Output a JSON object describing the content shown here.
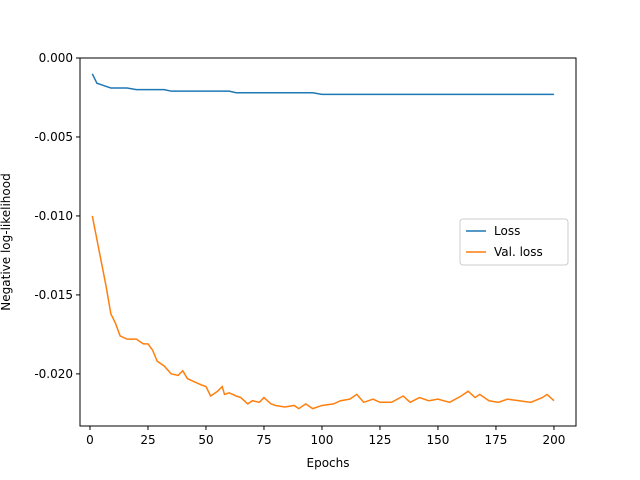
{
  "chart_data": {
    "type": "line",
    "xlabel": "Epochs",
    "ylabel": "Negative log-likelihood",
    "x": [
      1,
      3,
      5,
      7,
      9,
      11,
      13,
      16,
      20,
      23,
      25,
      27,
      29,
      32,
      35,
      38,
      40,
      42,
      45,
      48,
      50,
      52,
      55,
      57,
      58,
      60,
      63,
      65,
      68,
      70,
      73,
      75,
      78,
      80,
      84,
      88,
      90,
      93,
      96,
      100,
      105,
      108,
      112,
      115,
      118,
      122,
      125,
      130,
      135,
      138,
      142,
      146,
      150,
      155,
      160,
      163,
      166,
      168,
      172,
      176,
      180,
      185,
      190,
      195,
      197,
      200
    ],
    "series": [
      {
        "name": "Loss",
        "color": "#1f77b4",
        "values": [
          -0.001,
          -0.0016,
          -0.0017,
          -0.0018,
          -0.0019,
          -0.0019,
          -0.0019,
          -0.0019,
          -0.002,
          -0.002,
          -0.002,
          -0.002,
          -0.002,
          -0.002,
          -0.0021,
          -0.0021,
          -0.0021,
          -0.0021,
          -0.0021,
          -0.0021,
          -0.0021,
          -0.0021,
          -0.0021,
          -0.0021,
          -0.0021,
          -0.0021,
          -0.0022,
          -0.0022,
          -0.0022,
          -0.0022,
          -0.0022,
          -0.0022,
          -0.0022,
          -0.0022,
          -0.0022,
          -0.0022,
          -0.0022,
          -0.0022,
          -0.0022,
          -0.0023,
          -0.0023,
          -0.0023,
          -0.0023,
          -0.0023,
          -0.0023,
          -0.0023,
          -0.0023,
          -0.0023,
          -0.0023,
          -0.0023,
          -0.0023,
          -0.0023,
          -0.0023,
          -0.0023,
          -0.0023,
          -0.0023,
          -0.0023,
          -0.0023,
          -0.0023,
          -0.0023,
          -0.0023,
          -0.0023,
          -0.0023,
          -0.0023,
          -0.0023,
          -0.0023
        ]
      },
      {
        "name": "Val. loss",
        "color": "#ff7f0e",
        "values": [
          -0.01,
          -0.0115,
          -0.013,
          -0.0145,
          -0.0162,
          -0.0168,
          -0.0176,
          -0.0178,
          -0.0178,
          -0.0181,
          -0.0181,
          -0.0185,
          -0.0192,
          -0.0195,
          -0.02,
          -0.0201,
          -0.0198,
          -0.0203,
          -0.0205,
          -0.0207,
          -0.0208,
          -0.0214,
          -0.0211,
          -0.0208,
          -0.0213,
          -0.0212,
          -0.0214,
          -0.0215,
          -0.0219,
          -0.0217,
          -0.0218,
          -0.0215,
          -0.0219,
          -0.022,
          -0.0221,
          -0.022,
          -0.0222,
          -0.0219,
          -0.0222,
          -0.022,
          -0.0219,
          -0.0217,
          -0.0216,
          -0.0213,
          -0.0218,
          -0.0216,
          -0.0218,
          -0.0218,
          -0.0214,
          -0.0218,
          -0.0215,
          -0.0217,
          -0.0216,
          -0.0218,
          -0.0214,
          -0.0211,
          -0.0215,
          -0.0213,
          -0.0217,
          -0.0218,
          -0.0216,
          -0.0217,
          -0.0218,
          -0.0215,
          -0.0213,
          -0.0217
        ]
      }
    ],
    "xlim": [
      -4.3,
      209.5
    ],
    "xticks": [
      0,
      25,
      50,
      75,
      100,
      125,
      150,
      175,
      200
    ],
    "ylim": [
      -0.0233,
      0.0
    ],
    "yticks": [
      {
        "value": 0.0,
        "label": "0.000"
      },
      -0.005,
      {
        "value": -0.01,
        "label": "-0.010"
      },
      -0.015,
      {
        "value": -0.02,
        "label": "-0.020"
      }
    ],
    "legend": "center right",
    "grid": false
  }
}
